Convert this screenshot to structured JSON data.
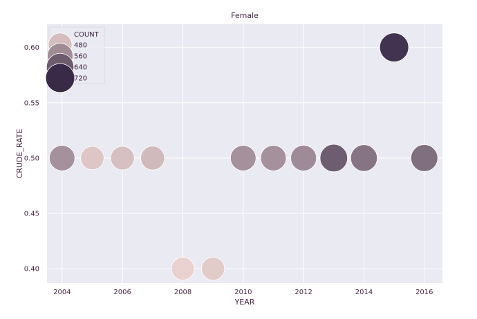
{
  "chart_data": {
    "type": "scatter",
    "title": "Female",
    "xlabel": "YEAR",
    "ylabel": "CRUDE_RATE",
    "xlim": [
      2003.5,
      2016.6
    ],
    "ylim": [
      0.387,
      0.621
    ],
    "xticks": [
      "2004",
      "2006",
      "2008",
      "2010",
      "2012",
      "2014",
      "2016"
    ],
    "yticks": [
      "0.40",
      "0.45",
      "0.50",
      "0.55",
      "0.60"
    ],
    "grid": true,
    "legend": {
      "title": "COUNT",
      "placement": "top-left",
      "entries": [
        {
          "label": "480",
          "value": 480
        },
        {
          "label": "560",
          "value": 560
        },
        {
          "label": "640",
          "value": 640
        },
        {
          "label": "720",
          "value": 720
        }
      ]
    },
    "points": [
      {
        "x": 2004,
        "y": 0.5,
        "count": 560
      },
      {
        "x": 2005,
        "y": 0.5,
        "count": 470
      },
      {
        "x": 2006,
        "y": 0.5,
        "count": 480
      },
      {
        "x": 2007,
        "y": 0.5,
        "count": 490
      },
      {
        "x": 2008,
        "y": 0.4,
        "count": 450
      },
      {
        "x": 2009,
        "y": 0.4,
        "count": 460
      },
      {
        "x": 2010,
        "y": 0.5,
        "count": 560
      },
      {
        "x": 2011,
        "y": 0.5,
        "count": 560
      },
      {
        "x": 2012,
        "y": 0.5,
        "count": 570
      },
      {
        "x": 2013,
        "y": 0.5,
        "count": 650
      },
      {
        "x": 2014,
        "y": 0.5,
        "count": 610
      },
      {
        "x": 2015,
        "y": 0.6,
        "count": 720
      },
      {
        "x": 2016,
        "y": 0.5,
        "count": 620
      }
    ],
    "colors": {
      "background": "#eaeaf2",
      "grid": "#ffffff",
      "low": "#efd6d1",
      "high": "#2c1e3d"
    }
  }
}
